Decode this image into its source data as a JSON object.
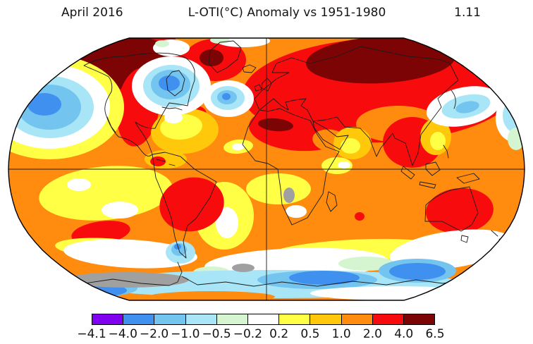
{
  "header": {
    "period": "April 2016",
    "title": "L-OTI(°C) Anomaly vs 1951-1980",
    "global_mean": "1.11"
  },
  "colorbar": {
    "tick_labels": [
      "−4.1",
      "−4.0",
      "−2.0",
      "−1.0",
      "−0.5",
      "−0.2",
      "0.2",
      "0.5",
      "1.0",
      "2.0",
      "4.0",
      "6.5"
    ],
    "colors": [
      "#8000f0",
      "#4090f0",
      "#74c4f0",
      "#a8e6f7",
      "#d4f5d0",
      "#ffffff",
      "#ffff45",
      "#ffc80a",
      "#ff8c0f",
      "#f80b0d",
      "#7d0405"
    ],
    "no_data_color": "#a0a0a0"
  },
  "chart_data": {
    "type": "heatmap",
    "title": "L-OTI(°C) Anomaly vs 1951-1980",
    "period": "April 2016",
    "global_mean_anomaly_c": 1.11,
    "baseline": "1951-1980",
    "units": "°C",
    "projection": "Robinson world map with equator and prime-meridian gridlines",
    "legend_position": "bottom colorbar",
    "scale_breakpoints": [
      -4.1,
      -4.0,
      -2.0,
      -1.0,
      -0.5,
      -0.2,
      0.2,
      0.5,
      1.0,
      2.0,
      4.0,
      6.5
    ],
    "scale_colors": [
      "#8000f0",
      "#4090f0",
      "#74c4f0",
      "#a8e6f7",
      "#d4f5d0",
      "#ffffff",
      "#ffff45",
      "#ffc80a",
      "#ff8c0f",
      "#f80b0d",
      "#7d0405"
    ],
    "no_data_color": "#a0a0a0",
    "notable_anomalies": [
      {
        "region": "Alaska / Bering Strait / eastern Siberia",
        "anomaly_c": "+4 to +6.5"
      },
      {
        "region": "North-central Siberia",
        "anomaly_c": "+4 to +6.5"
      },
      {
        "region": "Greenland interior",
        "anomaly_c": "+4 to +6.5"
      },
      {
        "region": "Sahara / Middle East patch",
        "anomaly_c": "+4 to +6.5"
      },
      {
        "region": "Most of Eurasia, western North America, Southeast Asia, Brazil, Australia",
        "anomaly_c": "+2 to +4"
      },
      {
        "region": "Tropical and mid-latitude oceans",
        "anomaly_c": "+0.5 to +2"
      },
      {
        "region": "Hudson Bay / northeastern Canada",
        "anomaly_c": "-1 to -2"
      },
      {
        "region": "Gulf of Alaska / North Pacific",
        "anomaly_c": "-1 to -2"
      },
      {
        "region": "North Atlantic south of Iceland",
        "anomaly_c": "-1 to -2"
      },
      {
        "region": "Pacific east of Japan",
        "anomaly_c": "-0.5 to -1"
      },
      {
        "region": "Southern Ocean / Antarctic coast",
        "anomaly_c": "-0.5 to -2"
      },
      {
        "region": "Parts of Antarctica and equatorial Africa",
        "anomaly_c": "no data"
      }
    ]
  }
}
